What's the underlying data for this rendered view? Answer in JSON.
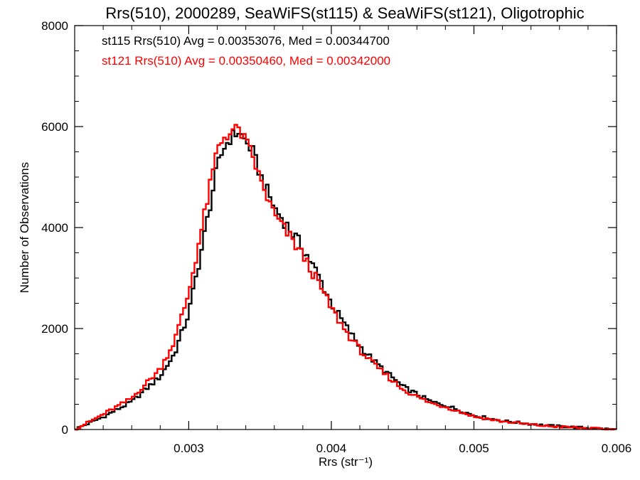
{
  "chart_data": {
    "type": "histogram",
    "title": "Rrs(510), 2000289, SeaWiFS(st115) & SeaWiFS(st121), Oligotrophic",
    "xlabel": "Rrs (str⁻¹)",
    "ylabel": "Number of Observations",
    "xlim": [
      0.0022,
      0.006
    ],
    "ylim": [
      0,
      8000
    ],
    "x_ticks": [
      0.003,
      0.004,
      0.005,
      0.006
    ],
    "x_tick_labels": [
      "0.003",
      "0.004",
      "0.005",
      "0.006"
    ],
    "y_ticks": [
      0,
      2000,
      4000,
      6000,
      8000
    ],
    "y_tick_labels": [
      "0",
      "2000",
      "4000",
      "6000",
      "8000"
    ],
    "bin_width": 2e-05,
    "grid": false,
    "annotations": [
      "st115 Rrs(510) Avg = 0.00353076, Med = 0.00344700",
      "st121 Rrs(510) Avg = 0.00350460, Med = 0.00342000"
    ],
    "series": [
      {
        "color": "#000000",
        "x": [
          0.0022,
          0.0024,
          0.0026,
          0.0028,
          0.0029,
          0.003,
          0.0031,
          0.0032,
          0.00325,
          0.0033,
          0.00335,
          0.0034,
          0.00345,
          0.0035,
          0.0036,
          0.0037,
          0.0038,
          0.0039,
          0.004,
          0.0041,
          0.0042,
          0.0043,
          0.0044,
          0.0045,
          0.0046,
          0.0047,
          0.0048,
          0.005,
          0.0052,
          0.0055,
          0.0058,
          0.006
        ],
        "values": [
          0,
          250,
          550,
          1050,
          1500,
          2300,
          3700,
          5200,
          5600,
          5800,
          5900,
          5700,
          5500,
          5050,
          4400,
          4000,
          3600,
          3100,
          2500,
          2050,
          1650,
          1350,
          1100,
          850,
          700,
          550,
          480,
          280,
          170,
          80,
          30,
          0
        ]
      },
      {
        "color": "#ff0000",
        "x": [
          0.0022,
          0.0024,
          0.0026,
          0.0028,
          0.0029,
          0.003,
          0.0031,
          0.0032,
          0.00325,
          0.0033,
          0.00335,
          0.0034,
          0.00345,
          0.0035,
          0.0036,
          0.0037,
          0.0038,
          0.0039,
          0.004,
          0.0041,
          0.0042,
          0.0043,
          0.0044,
          0.0045,
          0.0046,
          0.0047,
          0.0048,
          0.005,
          0.0052,
          0.0055,
          0.0058,
          0.006
        ],
        "values": [
          0,
          300,
          620,
          1200,
          1750,
          2700,
          4100,
          5550,
          5800,
          5900,
          5950,
          5700,
          5400,
          4950,
          4250,
          3850,
          3450,
          2950,
          2400,
          1950,
          1580,
          1280,
          1040,
          800,
          650,
          520,
          450,
          260,
          160,
          70,
          25,
          0
        ]
      }
    ]
  }
}
